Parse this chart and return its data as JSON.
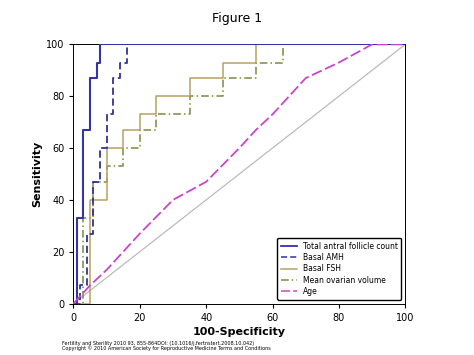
{
  "title": "Figure 1",
  "xlabel": "100-Specificity",
  "ylabel": "Sensitivity",
  "xlim": [
    0,
    100
  ],
  "ylim": [
    0,
    100
  ],
  "xticks": [
    0,
    20,
    40,
    60,
    80,
    100
  ],
  "yticks": [
    0,
    20,
    40,
    60,
    80,
    100
  ],
  "background_color": "#ffffff",
  "figure_background": "#ffffff",
  "outer_background": "#c8c8c8",
  "legend_entries": [
    "Total antral follicle count",
    "Basal AMH",
    "Basal FSH",
    "Mean ovarian volume",
    "Age"
  ],
  "tafc_color": "#3333aa",
  "amh_color": "#333399",
  "fsh_color": "#b8a060",
  "mov_color": "#7a8a40",
  "age_color": "#cc44cc",
  "ref_color": "#bbbbbb",
  "footer_text": "Fertility and Sterility 2010 93, 855-864DOI: (10.1016/j.fertnstert.2008.10.042)",
  "footer_text2": "Copyright © 2010 American Society for Reproductive Medicine Terms and Conditions"
}
